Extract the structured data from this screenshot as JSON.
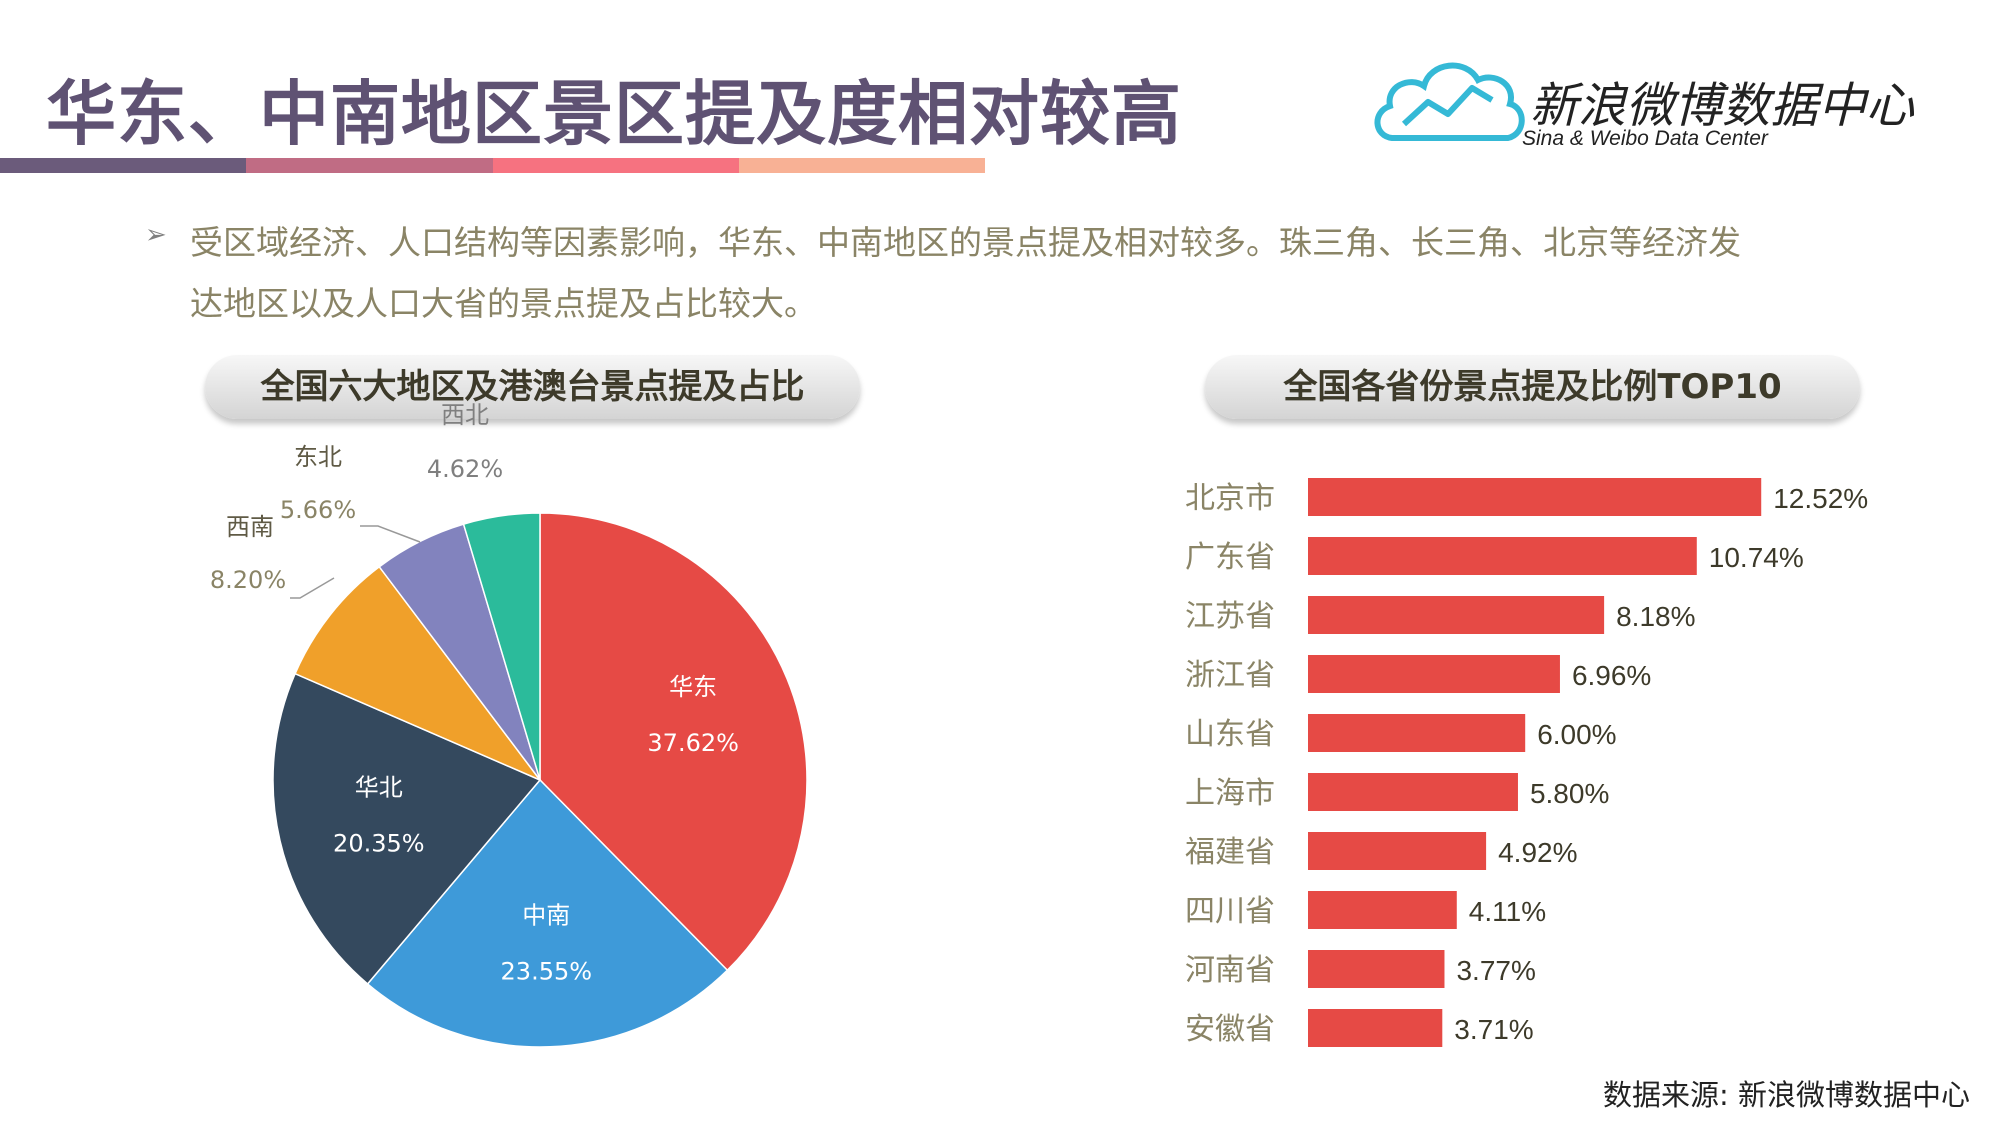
{
  "title": "华东、中南地区景区提及度相对较高",
  "title_bar_colors": [
    "#6b5b7b",
    "#c06c84",
    "#f67280",
    "#f8b195"
  ],
  "logo": {
    "name": "新浪微博数据中心",
    "subtitle": "Sina & Weibo Data Center",
    "icon": "cloud-chart-icon",
    "color": "#35b9d6"
  },
  "bullet": {
    "icon": "arrow-bullet-icon",
    "text": "受区域经济、人口结构等因素影响，华东、中南地区的景点提及相对较多。珠三角、长三角、北京等经济发达地区以及人口大省的景点提及占比较大。"
  },
  "left_header": "全国六大地区及港澳台景点提及占比",
  "right_header": "全国各省份景点提及比例TOP10",
  "source": "数据来源: 新浪微博数据中心",
  "chart_data": [
    {
      "type": "pie",
      "title": "全国六大地区及港澳台景点提及占比",
      "categories": [
        "华东",
        "中南",
        "华北",
        "西南",
        "东北",
        "西北"
      ],
      "values": [
        37.62,
        23.55,
        20.35,
        8.2,
        5.66,
        4.62
      ],
      "labels": [
        "37.62%",
        "23.55%",
        "20.35%",
        "8.20%",
        "5.66%",
        "4.62%"
      ],
      "colors": [
        "#e64a45",
        "#3e9ad9",
        "#34495e",
        "#f0a02a",
        "#8283be",
        "#2bbb9b"
      ],
      "start_angle": "12 o'clock",
      "direction": "clockwise"
    },
    {
      "type": "bar",
      "orientation": "horizontal",
      "title": "全国各省份景点提及比例TOP10",
      "categories": [
        "北京市",
        "广东省",
        "江苏省",
        "浙江省",
        "山东省",
        "上海市",
        "福建省",
        "四川省",
        "河南省",
        "安徽省"
      ],
      "values": [
        12.52,
        10.74,
        8.18,
        6.96,
        6.0,
        5.8,
        4.92,
        4.11,
        3.77,
        3.71
      ],
      "labels": [
        "12.52%",
        "10.74%",
        "8.18%",
        "6.96%",
        "6.00%",
        "5.80%",
        "4.92%",
        "4.11%",
        "3.77%",
        "3.71%"
      ],
      "color": "#e64a45",
      "grid": false,
      "legend": "none"
    }
  ]
}
